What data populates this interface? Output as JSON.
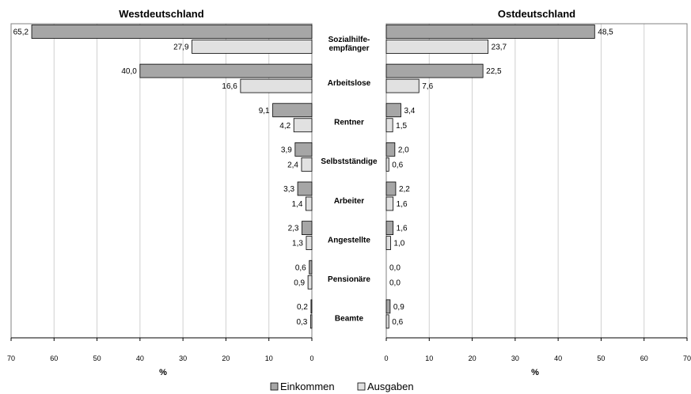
{
  "chart_data": [
    {
      "type": "bar",
      "title": "Westdeutschland",
      "xlabel": "%",
      "ylabel": "",
      "xlim": [
        0,
        70
      ],
      "orientation": "horizontal",
      "direction": "right-to-left",
      "grid": true,
      "categories": [
        "Sozialhilfe-empfänger",
        "Arbeitslose",
        "Rentner",
        "Selbstständige",
        "Arbeiter",
        "Angestellte",
        "Pensionäre",
        "Beamte"
      ],
      "series": [
        {
          "name": "Einkommen",
          "values": [
            65.2,
            40.0,
            9.1,
            3.9,
            3.3,
            2.3,
            0.6,
            0.2
          ],
          "labels": [
            "65,2",
            "40,0",
            "9,1",
            "3,9",
            "3,3",
            "2,3",
            "0,6",
            "0,2"
          ]
        },
        {
          "name": "Ausgaben",
          "values": [
            27.9,
            16.6,
            4.2,
            2.4,
            1.4,
            1.3,
            0.9,
            0.3
          ],
          "labels": [
            "27,9",
            "16,6",
            "4,2",
            "2,4",
            "1,4",
            "1,3",
            "0,9",
            "0,3"
          ]
        }
      ]
    },
    {
      "type": "bar",
      "title": "Ostdeutschland",
      "xlabel": "%",
      "ylabel": "",
      "xlim": [
        0,
        70
      ],
      "orientation": "horizontal",
      "direction": "left-to-right",
      "grid": true,
      "categories": [
        "Sozialhilfe-empfänger",
        "Arbeitslose",
        "Rentner",
        "Selbstständige",
        "Arbeiter",
        "Angestellte",
        "Pensionäre",
        "Beamte"
      ],
      "series": [
        {
          "name": "Einkommen",
          "values": [
            48.5,
            22.5,
            3.4,
            2.0,
            2.2,
            1.6,
            0.0,
            0.9
          ],
          "labels": [
            "48,5",
            "22,5",
            "3,4",
            "2,0",
            "2,2",
            "1,6",
            "0,0",
            "0,9"
          ]
        },
        {
          "name": "Ausgaben",
          "values": [
            23.7,
            7.6,
            1.5,
            0.6,
            1.6,
            1.0,
            0.0,
            0.6
          ],
          "labels": [
            "23,7",
            "7,6",
            "1,5",
            "0,6",
            "1,6",
            "1,0",
            "0,0",
            "0,6"
          ]
        }
      ]
    }
  ],
  "category_labels": [
    [
      "Sozialhilfe-",
      "empfänger"
    ],
    [
      "Arbeitslose"
    ],
    [
      "Rentner"
    ],
    [
      "Selbstständige"
    ],
    [
      "Arbeiter"
    ],
    [
      "Angestellte"
    ],
    [
      "Pensionäre"
    ],
    [
      "Beamte"
    ]
  ],
  "ticks": [
    "70",
    "60",
    "50",
    "40",
    "30",
    "20",
    "10",
    "0"
  ],
  "legend": {
    "placement": "bottom-center",
    "items": [
      {
        "label": "Einkommen",
        "color": "#a6a6a6"
      },
      {
        "label": "Ausgaben",
        "color": "#e1e1e1"
      }
    ]
  },
  "colors": {
    "einkommen": "#a6a6a6",
    "ausgaben": "#e1e1e1",
    "grid": "#d0d0d0",
    "outline": "#000000"
  }
}
